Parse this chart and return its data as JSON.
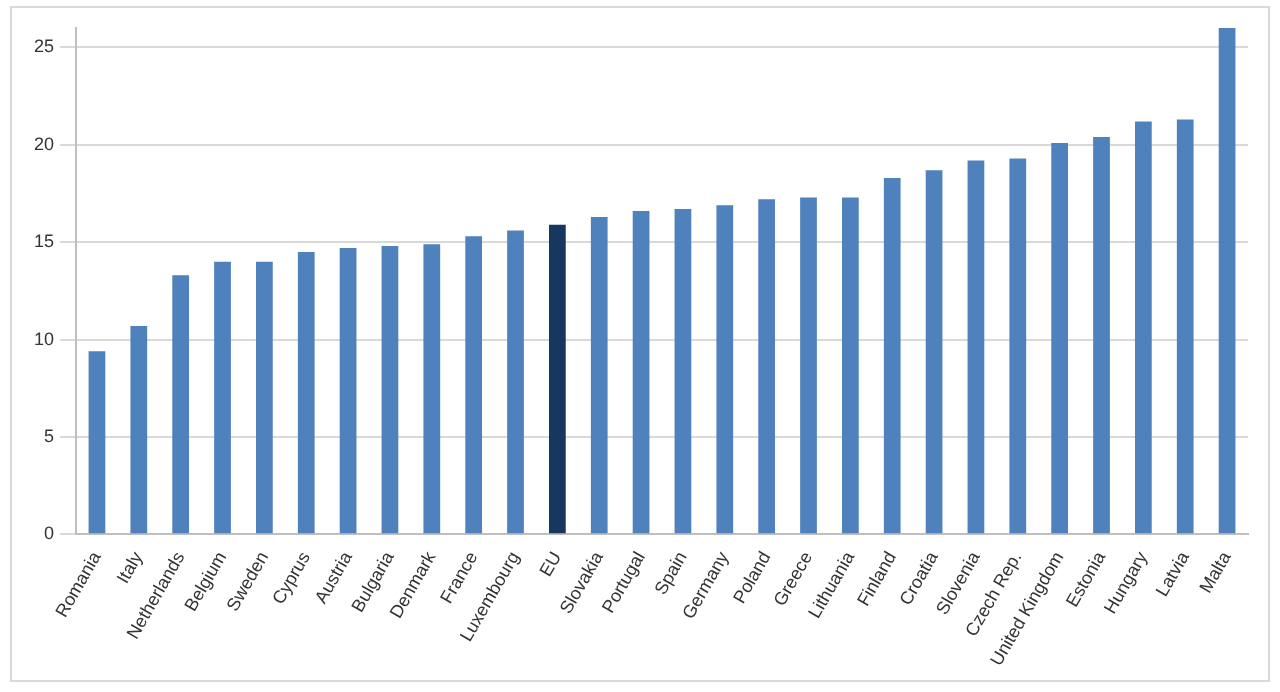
{
  "chart_data": {
    "type": "bar",
    "categories": [
      "Romania",
      "Italy",
      "Netherlands",
      "Belgium",
      "Sweden",
      "Cyprus",
      "Austria",
      "Bulgaria",
      "Denmark",
      "France",
      "Luxembourg",
      "EU",
      "Slovakia",
      "Portugal",
      "Spain",
      "Germany",
      "Poland",
      "Greece",
      "Lithuania",
      "Finland",
      "Croatia",
      "Slovenia",
      "Czech Rep.",
      "United Kingdom",
      "Estonia",
      "Hungary",
      "Latvia",
      "Malta"
    ],
    "values": [
      9.4,
      10.7,
      13.3,
      14.0,
      14.0,
      14.5,
      14.7,
      14.8,
      14.9,
      15.3,
      15.6,
      15.9,
      16.3,
      16.6,
      16.7,
      16.9,
      17.2,
      17.3,
      17.3,
      18.3,
      18.7,
      19.2,
      19.3,
      20.1,
      20.4,
      21.2,
      21.3,
      26.0
    ],
    "colors": [
      "#4f81bd",
      "#4f81bd",
      "#4f81bd",
      "#4f81bd",
      "#4f81bd",
      "#4f81bd",
      "#4f81bd",
      "#4f81bd",
      "#4f81bd",
      "#4f81bd",
      "#4f81bd",
      "#17375e",
      "#4f81bd",
      "#4f81bd",
      "#4f81bd",
      "#4f81bd",
      "#4f81bd",
      "#4f81bd",
      "#4f81bd",
      "#4f81bd",
      "#4f81bd",
      "#4f81bd",
      "#4f81bd",
      "#4f81bd",
      "#4f81bd",
      "#4f81bd",
      "#4f81bd",
      "#4f81bd"
    ],
    "ylim": [
      0,
      26
    ],
    "yticks": [
      0,
      5,
      10,
      15,
      20,
      25
    ],
    "grid": "y",
    "legend": false
  }
}
